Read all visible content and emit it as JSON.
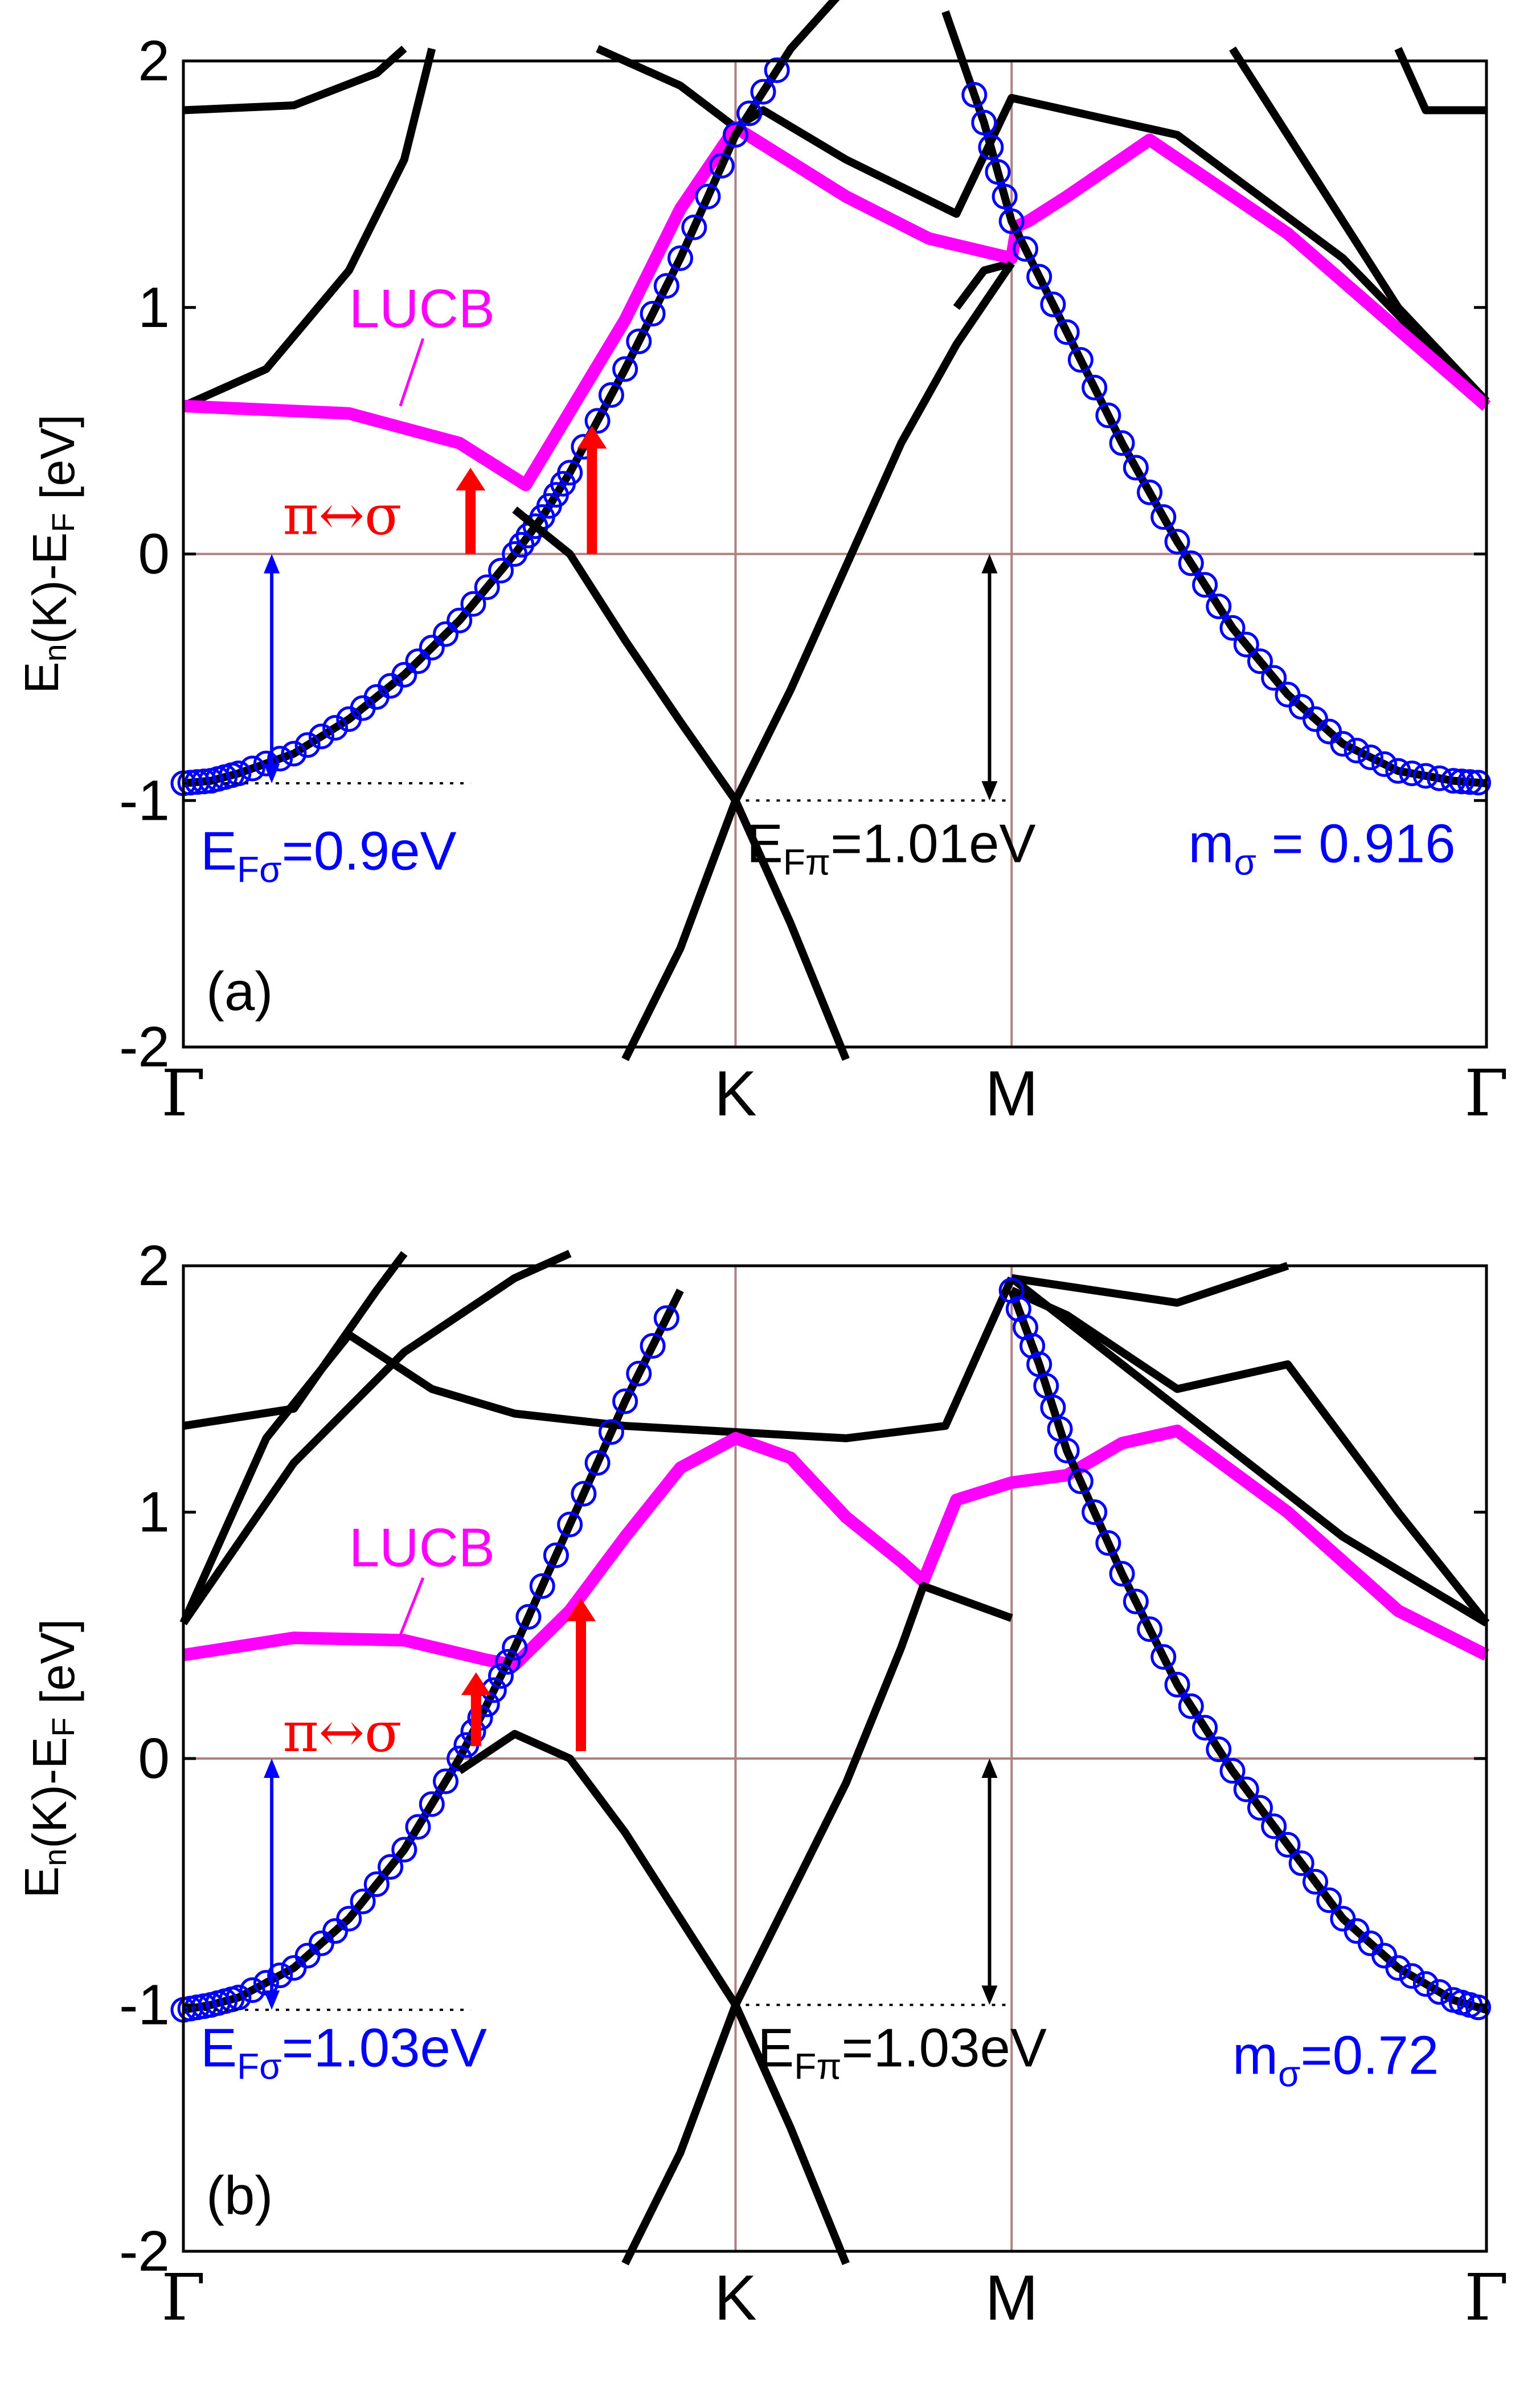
{
  "chart_data": [
    {
      "type": "line",
      "panel_label": "(a)",
      "ylabel": "E_n(K)-E_F [eV]",
      "ylim": [
        -2,
        2
      ],
      "yticks": [
        "-2",
        "-1",
        "0",
        "1",
        "2"
      ],
      "kpoints": [
        "Γ",
        "K",
        "M",
        "Γ"
      ],
      "kpoint_x": [
        0,
        1.0,
        0.5,
        1.155
      ],
      "lucb_label": "LUCB",
      "transition_label": "π↔σ",
      "annotations": {
        "EF_sigma": {
          "base": "E",
          "sub": "Fσ",
          "rest": "=0.9eV"
        },
        "EF_pi": {
          "base": "E",
          "sub": "Fπ",
          "rest": "=1.01eV"
        },
        "m_sigma": {
          "base": "m",
          "sub": "σ",
          "rest": " = 0.916"
        }
      },
      "colors": {
        "bands": "#000000",
        "lucb": "#ff00ff",
        "sigma": "#0000ff",
        "transition": "#ff0000",
        "vlines": "#b08080"
      },
      "series": [
        {
          "name": "LUCB",
          "x": [
            0,
            0.3,
            0.5,
            0.62,
            0.8,
            0.9,
            1.0,
            1.2,
            1.35,
            1.5,
            1.51,
            1.53,
            1.6,
            1.75,
            2.0,
            2.36
          ],
          "y": [
            0.6,
            0.57,
            0.45,
            0.28,
            0.95,
            1.4,
            1.73,
            1.45,
            1.28,
            1.2,
            1.33,
            1.35,
            1.45,
            1.68,
            1.3,
            0.6
          ]
        },
        {
          "name": "",
          "x": [
            0,
            0.05,
            0.1,
            0.2,
            0.3,
            0.4,
            0.5,
            0.6,
            0.65,
            0.7,
            0.8,
            0.9,
            1.0,
            1.1,
            1.2
          ],
          "y": [
            -0.93,
            -0.92,
            -0.89,
            -0.81,
            -0.67,
            -0.49,
            -0.27,
            0.0,
            0.15,
            0.33,
            0.75,
            1.2,
            1.7,
            2.05,
            2.3
          ]
        },
        {
          "name": "",
          "x": [
            1.38,
            1.45,
            1.5,
            1.6,
            1.7,
            1.8,
            1.9,
            2.0,
            2.1,
            2.2,
            2.3,
            2.36
          ],
          "y": [
            2.2,
            1.75,
            1.35,
            0.9,
            0.45,
            0.05,
            -0.3,
            -0.57,
            -0.77,
            -0.88,
            -0.92,
            -0.93
          ]
        },
        {
          "name": "",
          "x": [
            0.6,
            0.7,
            0.8,
            0.9,
            1.0,
            1.1,
            1.2,
            1.3,
            1.4,
            1.5
          ],
          "y": [
            0.18,
            0.0,
            -0.35,
            -0.68,
            -1.0,
            -0.55,
            -0.05,
            0.45,
            0.85,
            1.18
          ]
        }
      ]
    },
    {
      "type": "line",
      "panel_label": "(b)",
      "ylabel": "E_n(K)-E_F [eV]",
      "ylim": [
        -2,
        2
      ],
      "yticks": [
        "-2",
        "-1",
        "0",
        "1",
        "2"
      ],
      "kpoints": [
        "Γ",
        "K",
        "M",
        "Γ"
      ],
      "kpoint_x": [
        0,
        1.0,
        0.5,
        1.155
      ],
      "lucb_label": "LUCB",
      "transition_label": "π↔σ",
      "annotations": {
        "EF_sigma": {
          "base": "E",
          "sub": "Fσ",
          "rest": "=1.03eV"
        },
        "EF_pi": {
          "base": "E",
          "sub": "Fπ",
          "rest": "=1.03eV"
        },
        "m_sigma": {
          "base": "m",
          "sub": "σ",
          "rest": "=0.72"
        }
      },
      "colors": {
        "bands": "#000000",
        "lucb": "#ff00ff",
        "sigma": "#0000ff",
        "transition": "#ff0000",
        "vlines": "#b08080"
      },
      "series": [
        {
          "name": "LUCB",
          "x": [
            0,
            0.2,
            0.4,
            0.55,
            0.6,
            0.7,
            0.8,
            0.9,
            1.0,
            1.1,
            1.2,
            1.3,
            1.34,
            1.4,
            1.5,
            1.6,
            1.7,
            1.8,
            2.0,
            2.2,
            2.36
          ],
          "y": [
            0.42,
            0.49,
            0.48,
            0.4,
            0.38,
            0.6,
            0.9,
            1.18,
            1.3,
            1.22,
            0.98,
            0.8,
            0.72,
            1.05,
            1.12,
            1.15,
            1.28,
            1.33,
            1.0,
            0.6,
            0.42
          ]
        },
        {
          "name": "",
          "x": [
            0,
            0.05,
            0.1,
            0.2,
            0.3,
            0.4,
            0.5,
            0.55,
            0.6,
            0.7,
            0.8,
            0.9
          ],
          "y": [
            -1.02,
            -1.0,
            -0.97,
            -0.85,
            -0.65,
            -0.37,
            0.0,
            0.22,
            0.45,
            0.95,
            1.45,
            1.9
          ]
        },
        {
          "name": "",
          "x": [
            1.5,
            1.55,
            1.6,
            1.7,
            1.8,
            1.9,
            2.0,
            2.1,
            2.2,
            2.3,
            2.36
          ],
          "y": [
            1.9,
            1.6,
            1.25,
            0.75,
            0.3,
            -0.05,
            -0.35,
            -0.65,
            -0.85,
            -0.98,
            -1.02
          ]
        },
        {
          "name": "",
          "x": [
            0.5,
            0.6,
            0.7,
            0.8,
            0.9,
            1.0,
            1.1,
            1.2,
            1.3,
            1.34,
            1.5
          ],
          "y": [
            -0.05,
            0.1,
            0.0,
            -0.3,
            -0.65,
            -1.0,
            -0.55,
            -0.1,
            0.45,
            0.7,
            0.57
          ]
        }
      ]
    }
  ]
}
